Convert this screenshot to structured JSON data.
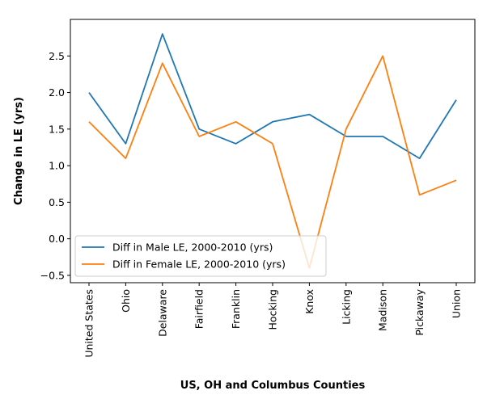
{
  "chart_data": {
    "type": "line",
    "title": "",
    "xlabel": "US, OH and Columbus Counties",
    "ylabel": "Change in LE (yrs)",
    "categories": [
      "United States",
      "Ohio",
      "Delaware",
      "Fairfield",
      "Franklin",
      "Hocking",
      "Knox",
      "Licking",
      "Madison",
      "Pickaway",
      "Union"
    ],
    "ylim": [
      -0.6,
      3.0
    ],
    "yticks": [
      -0.5,
      0.0,
      0.5,
      1.0,
      1.5,
      2.0,
      2.5
    ],
    "ytick_labels": [
      "−0.5",
      "0.0",
      "0.5",
      "1.0",
      "1.5",
      "2.0",
      "2.5"
    ],
    "grid": false,
    "legend_position": "lower-left",
    "series": [
      {
        "name": "Diff in Male LE, 2000-2010 (yrs)",
        "color": "#1f77b4",
        "values": [
          2.0,
          1.3,
          2.8,
          1.5,
          1.3,
          1.6,
          1.7,
          1.4,
          1.4,
          1.1,
          1.9
        ]
      },
      {
        "name": "Diff in Female LE, 2000-2010 (yrs)",
        "color": "#ff7f0e",
        "values": [
          1.6,
          1.1,
          2.4,
          1.4,
          1.6,
          1.3,
          -0.4,
          1.5,
          2.5,
          0.6,
          0.8
        ]
      }
    ]
  }
}
